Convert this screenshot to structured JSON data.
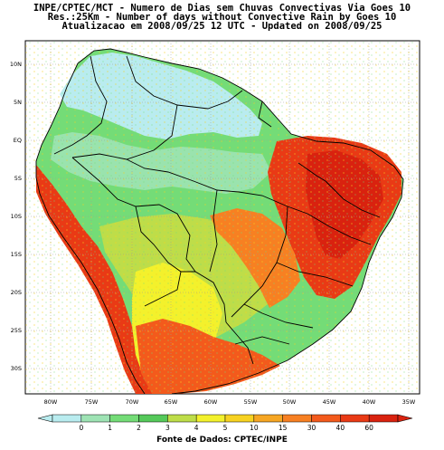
{
  "header": {
    "line1": "INPE/CPTEC/MCT - Numero de Dias sem Chuvas Convectivas Via Goes 10",
    "line2": "Res.:25Km - Number of days without Convective Rain by Goes 10",
    "line3": "Atualizacao em 2008/09/25 12 UTC - Updated on 2008/09/25"
  },
  "axes": {
    "lat_ticks": [
      "10N",
      "5N",
      "EQ",
      "5S",
      "10S",
      "15S",
      "20S",
      "25S",
      "30S"
    ],
    "lon_ticks": [
      "80W",
      "75W",
      "70W",
      "65W",
      "60W",
      "55W",
      "50W",
      "45W",
      "40W",
      "35W"
    ]
  },
  "colorbar": {
    "labels": [
      "0",
      "1",
      "2",
      "3",
      "4",
      "5",
      "10",
      "15",
      "30",
      "40",
      "60"
    ],
    "colors": [
      "#b9ecef",
      "#9ee3b4",
      "#74dc77",
      "#55c95a",
      "#bedd49",
      "#f3f12c",
      "#f7d221",
      "#f6a623",
      "#f78022",
      "#f35a1c",
      "#e93a15",
      "#d9220f"
    ]
  },
  "footer": {
    "source": "Fonte de Dados: CPTEC/INPE"
  }
}
